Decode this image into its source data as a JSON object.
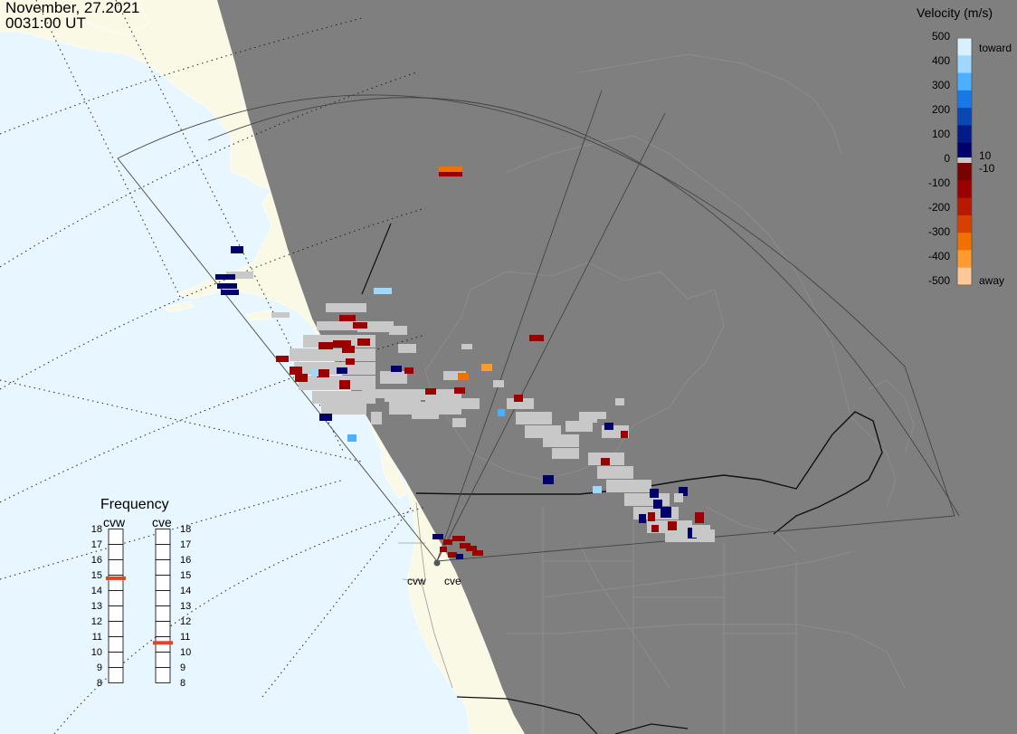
{
  "header": {
    "date": "November, 27.2021",
    "time": "0031:00 UT"
  },
  "colors": {
    "ocean": "#e8f6ff",
    "land_day": "#faf9e6",
    "night": "#7f7f7f",
    "ground_scatter": "#c8c8c8",
    "boundary_day": "#000000",
    "boundary_night": "#1a1a1a"
  },
  "velocity_scale": {
    "title": "Velocity (m/s)",
    "ticks": [
      "500",
      "400",
      "300",
      "200",
      "100",
      "0",
      "-100",
      "-200",
      "-300",
      "-400",
      "-500"
    ],
    "toward_label": "toward",
    "away_label": "away",
    "near_zero_pos": "10",
    "near_zero_neg": "-10",
    "colors_toward": [
      "#d8f0ff",
      "#9ed8ff",
      "#4ab0ff",
      "#1878e8",
      "#0848b0",
      "#041a88",
      "#000068"
    ],
    "colors_away": [
      "#7a0000",
      "#9a0000",
      "#b81800",
      "#d84000",
      "#f07000",
      "#ff9a30",
      "#ffc898"
    ]
  },
  "frequency_panel": {
    "title": "Frequency",
    "left_radar": "cvw",
    "right_radar": "cve",
    "ticks": [
      "18",
      "17",
      "16",
      "15",
      "14",
      "13",
      "12",
      "11",
      "10",
      "9",
      "8"
    ],
    "cvw_value": 14.8,
    "cve_value": 10.6,
    "indicator_color": "#e84020"
  },
  "radars": [
    {
      "name": "cvw",
      "label": "cvw"
    },
    {
      "name": "cve",
      "label": "cve"
    }
  ]
}
